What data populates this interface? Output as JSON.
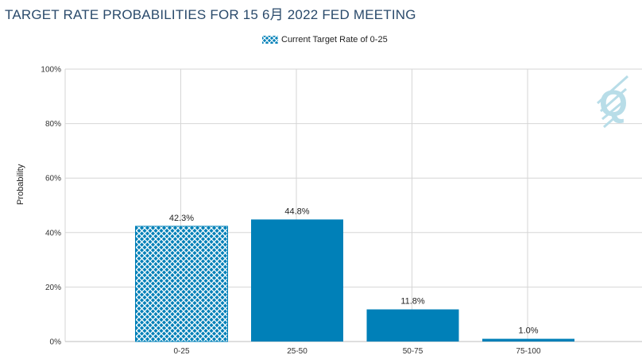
{
  "colors": {
    "bar": "#0080b8",
    "current_bar_hatch": "#0080b8",
    "grid": "#d6d6d6",
    "title": "#2a4a6b",
    "watermark": "#b8dde8"
  },
  "chart_data": {
    "type": "bar",
    "title": "TARGET RATE PROBABILITIES FOR 15 6月 2022 FED MEETING",
    "xlabel": "",
    "ylabel": "Probability",
    "categories": [
      "0-25",
      "25-50",
      "50-75",
      "75-100"
    ],
    "values": [
      42.3,
      44.8,
      11.8,
      1.0
    ],
    "value_labels": [
      "42.3%",
      "44.8%",
      "11.8%",
      "1.0%"
    ],
    "highlighted_category": "0-25",
    "legend": {
      "entries": [
        "Current Target Rate of 0-25"
      ],
      "placement": "top-center"
    },
    "yticks": [
      "0%",
      "20%",
      "40%",
      "60%",
      "80%",
      "100%"
    ],
    "ytick_values": [
      0,
      20,
      40,
      60,
      80,
      100
    ],
    "ylim": [
      0,
      100
    ],
    "grid": true
  }
}
